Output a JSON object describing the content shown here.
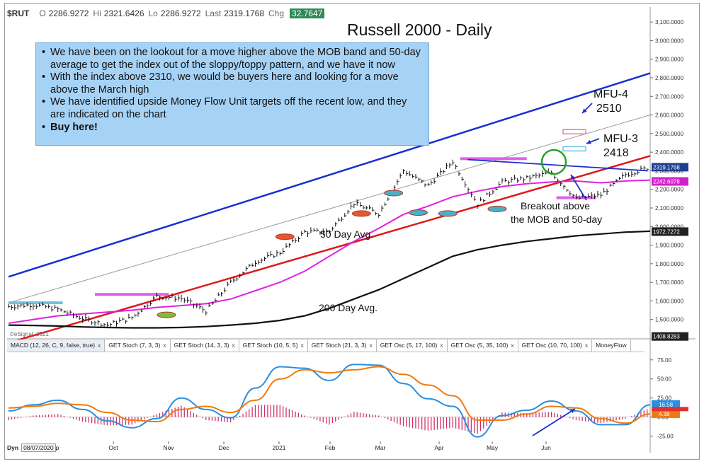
{
  "quote": {
    "symbol": "$RUT",
    "open_label": "O",
    "open": "2286.9272",
    "high_label": "Hi",
    "high": "2321.6426",
    "low_label": "Lo",
    "low": "2286.9272",
    "last_label": "Last",
    "last": "2319.1768",
    "chg_label": "Chg",
    "chg": "32.7647"
  },
  "title": "Russell 2000 - Daily",
  "notes": [
    "We have been on the lookout for a move higher above the MOB band and 50-day average to get the index out of the sloppy/toppy pattern, and we have it now",
    "With the index above 2310, we would be buyers here and looking for a move above the March high",
    "We have identified upside Money Flow Unit targets off the recent low, and they are indicated on the chart",
    "Buy here!"
  ],
  "bullet": "•",
  "annotations": {
    "mfu4_label": "MFU-4",
    "mfu4_value": "2510",
    "mfu3_label": "MFU-3",
    "mfu3_value": "2418",
    "breakout_line1": "Breakout above",
    "breakout_line2": "the MOB and 50-day",
    "ma50": "50 Day Avg.",
    "ma200": "200 Day Avg."
  },
  "credit": "©eSignal, 2021",
  "tabs": [
    {
      "label": "MACD (12, 26, C, 9, false, true)",
      "active": true
    },
    {
      "label": "GET Stoch (7, 3, 3)",
      "active": false
    },
    {
      "label": "GET Stoch (14, 3, 3)",
      "active": false
    },
    {
      "label": "GET Stoch (10, 5, 5)",
      "active": false
    },
    {
      "label": "GET Stoch (21, 3, 3)",
      "active": false
    },
    {
      "label": "GET Osc (5, 17, 100)",
      "active": false
    },
    {
      "label": "GET Osc (5, 35, 100)",
      "active": false
    },
    {
      "label": "GET Osc (10, 70, 100)",
      "active": false
    },
    {
      "label": "MoneyFlow",
      "active": false
    }
  ],
  "tab_close": "x",
  "footer": {
    "dyn": "Dyn",
    "date": "08/07/2020",
    "suffix": "p"
  },
  "colors": {
    "bars": "#111111",
    "ma50": "#e020e0",
    "ma200": "#111111",
    "upper_channel": "#1a2fd0",
    "lower_channel": "#e01818",
    "mid_channel": "#9a9a9a",
    "macd": "#2a8fe0",
    "signal": "#f07a10",
    "histogram": "#d0306a",
    "mob_band": "#e060e8",
    "mfu": "#f0a8b0",
    "mfu3": "#70c0e8",
    "price_tag": "#1f3f8f"
  },
  "chart_data": [
    {
      "type": "line",
      "title": "Russell 2000 - Daily",
      "x": [
        "2020-08-07",
        "2020-08-24",
        "2020-09-01",
        "2020-09-15",
        "2020-09-24",
        "2020-10-01",
        "2020-10-12",
        "2020-10-22",
        "2020-10-30",
        "2020-11-09",
        "2020-11-20",
        "2020-12-01",
        "2020-12-15",
        "2021-01-04",
        "2021-01-15",
        "2021-01-27",
        "2021-02-10",
        "2021-02-26",
        "2021-03-15",
        "2021-03-24",
        "2021-04-01",
        "2021-04-15",
        "2021-04-29",
        "2021-05-12",
        "2021-05-20",
        "2021-06-01",
        "2021-06-08"
      ],
      "categories_ticks": [
        "Oct",
        "Nov",
        "Dec",
        "2021",
        "Feb",
        "Mar",
        "Apr",
        "May",
        "Jun"
      ],
      "series": [
        {
          "name": "price",
          "values": [
            1570,
            1580,
            1555,
            1505,
            1470,
            1510,
            1625,
            1615,
            1545,
            1700,
            1810,
            1860,
            1970,
            1975,
            2125,
            2070,
            2300,
            2220,
            2350,
            2120,
            2240,
            2260,
            2290,
            2150,
            2170,
            2280,
            2319
          ]
        },
        {
          "name": "50 Day Avg.",
          "values": [
            1480,
            1500,
            1520,
            1530,
            1540,
            1550,
            1565,
            1575,
            1585,
            1610,
            1655,
            1700,
            1760,
            1840,
            1920,
            1990,
            2065,
            2110,
            2160,
            2190,
            2215,
            2230,
            2240,
            2245,
            2235,
            2245,
            2250
          ]
        },
        {
          "name": "200 Day Avg.",
          "values": [
            1470,
            1468,
            1465,
            1460,
            1457,
            1455,
            1455,
            1457,
            1462,
            1470,
            1480,
            1495,
            1520,
            1560,
            1610,
            1660,
            1720,
            1780,
            1840,
            1875,
            1900,
            1920,
            1935,
            1950,
            1960,
            1970,
            1975
          ]
        }
      ],
      "price_tags": [
        "2319.1768",
        "2242.6078",
        "1972.7272",
        "1408.8283"
      ],
      "y_ticks": [
        "3,100.0000",
        "3,000.0000",
        "2,900.0000",
        "2,800.0000",
        "2,700.0000",
        "2,600.0000",
        "2,500.0000",
        "2,400.0000",
        "2,300.0000",
        "2,200.0000",
        "2,100.0000",
        "2,000.0000",
        "1,900.0000",
        "1,800.0000",
        "1,700.0000",
        "1,600.0000",
        "1,500.0000"
      ],
      "ylim": [
        1400,
        3150
      ],
      "channel": {
        "upper": [
          [
            0,
            1730
          ],
          [
            26,
            2825
          ]
        ],
        "lower": [
          [
            0,
            1375
          ],
          [
            26,
            2380
          ]
        ],
        "mid": [
          [
            0,
            1590
          ],
          [
            26,
            2600
          ]
        ]
      },
      "mfu_targets": [
        2510,
        2418
      ],
      "grid": false
    },
    {
      "type": "line",
      "title": "",
      "series": [
        {
          "name": "MACD",
          "values": [
            8,
            16,
            22,
            10,
            -5,
            -14,
            -2,
            25,
            10,
            -1,
            38,
            66,
            64,
            48,
            69,
            68,
            44,
            24,
            14,
            -26,
            2,
            9,
            21,
            8,
            -10,
            -10,
            16
          ]
        },
        {
          "name": "Signal",
          "values": [
            12,
            14,
            18,
            16,
            6,
            -4,
            -6,
            10,
            14,
            6,
            22,
            50,
            62,
            58,
            62,
            66,
            56,
            42,
            28,
            -4,
            -4,
            4,
            14,
            12,
            -2,
            -8,
            4
          ]
        }
      ],
      "histogram": [
        -4,
        2,
        4,
        -6,
        -11,
        -10,
        4,
        15,
        -4,
        -7,
        16,
        16,
        2,
        -10,
        7,
        2,
        -12,
        -18,
        -14,
        -22,
        6,
        5,
        7,
        -4,
        -8,
        -2,
        12
      ],
      "y_ticks": [
        "75.00",
        "50.00",
        "25.00",
        "0.00",
        "-25.00"
      ],
      "price_tags": [
        "16.58",
        "4.38"
      ],
      "ylim": [
        -30,
        85
      ]
    }
  ]
}
